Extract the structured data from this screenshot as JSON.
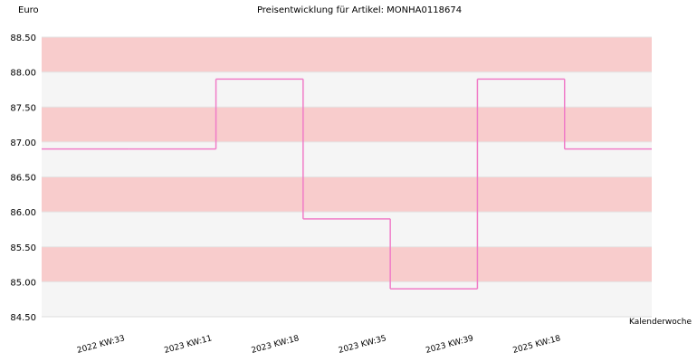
{
  "chart_data": {
    "type": "step",
    "title": "Preisentwicklung für Artikel: MONHA0118674",
    "y_label": "Euro",
    "x_label": "Kalenderwoche",
    "categories": [
      null,
      "2022 KW:33",
      "2023 KW:11",
      "2023 KW:18",
      "2023 KW:35",
      "2023 KW:39",
      "2025 KW:18"
    ],
    "series": [
      {
        "color": "#f07cc8",
        "values": [
          86.9,
          86.9,
          87.9,
          85.9,
          84.9,
          87.9,
          86.9
        ]
      }
    ],
    "ylim": [
      84.5,
      88.5
    ],
    "yticks": [
      {
        "value": 84.5,
        "label": "84.50"
      },
      {
        "value": 85,
        "label": "85.00"
      },
      {
        "value": 85.5,
        "label": "85.50"
      },
      {
        "value": 86,
        "label": "86.00"
      },
      {
        "value": 86.5,
        "label": "86.50"
      },
      {
        "value": 87,
        "label": "87.00"
      },
      {
        "value": 87.5,
        "label": "87.50"
      },
      {
        "value": 88,
        "label": "88.00"
      },
      {
        "value": 88.5,
        "label": "88.50"
      }
    ],
    "band_colors": [
      "#f5f5f5",
      "#f8cccc"
    ]
  }
}
